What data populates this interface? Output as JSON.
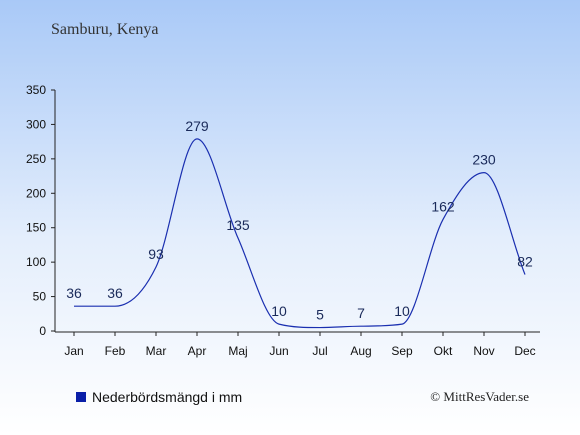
{
  "title": "Samburu, Kenya",
  "legend_label": "Nederbördsmängd i mm",
  "copyright": "© MittResVader.se",
  "colors": {
    "line": "#1a2fb0",
    "axis": "#222222",
    "label": "#1a2a5a",
    "swatch": "#0a1fa8"
  },
  "chart_data": {
    "type": "line",
    "categories": [
      "Jan",
      "Feb",
      "Mar",
      "Apr",
      "Maj",
      "Jun",
      "Jul",
      "Aug",
      "Sep",
      "Okt",
      "Nov",
      "Dec"
    ],
    "series": [
      {
        "name": "Nederbördsmängd i mm",
        "values": [
          36,
          36,
          93,
          279,
          135,
          10,
          5,
          7,
          10,
          162,
          230,
          82
        ]
      }
    ],
    "data_labels": [
      "36",
      "36",
      "93",
      "279",
      "135",
      "10",
      "5",
      "7",
      "10",
      "162",
      "230",
      "82"
    ],
    "yticks": [
      "0",
      "50",
      "100",
      "150",
      "200",
      "250",
      "300",
      "350"
    ],
    "ylim": [
      0,
      350
    ],
    "grid": false
  }
}
